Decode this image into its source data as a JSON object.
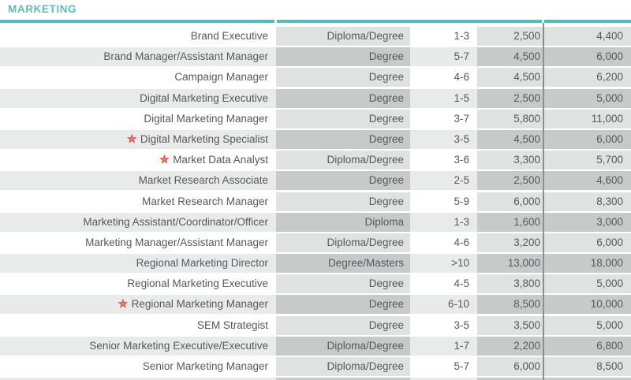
{
  "section": {
    "title": "MARKETING"
  },
  "icons": {
    "star": "★"
  },
  "colors": {
    "accent_teal": "#54bcb7",
    "title_teal": "#5cbfbb",
    "star_red": "#d5493c",
    "star_fill": "#ef8070",
    "row_stripe": "#e9eaea",
    "overlay_light": "#e0e1e1",
    "overlay_dark": "#c8caca",
    "divider_gray": "#8c8e90",
    "text_gray": "#57585b"
  },
  "table": {
    "rows": [
      {
        "starred": false,
        "job_title": "Brand Executive",
        "qualification": "Diploma/Degree",
        "experience": "1-3",
        "salary_min": "2,500",
        "salary_max": "4,400"
      },
      {
        "starred": false,
        "job_title": "Brand Manager/Assistant Manager",
        "qualification": "Degree",
        "experience": "5-7",
        "salary_min": "4,500",
        "salary_max": "6,000"
      },
      {
        "starred": false,
        "job_title": "Campaign Manager",
        "qualification": "Degree",
        "experience": "4-6",
        "salary_min": "4,500",
        "salary_max": "6,200"
      },
      {
        "starred": false,
        "job_title": "Digital Marketing Executive",
        "qualification": "Degree",
        "experience": "1-5",
        "salary_min": "2,500",
        "salary_max": "5,000"
      },
      {
        "starred": false,
        "job_title": "Digital Marketing Manager",
        "qualification": "Degree",
        "experience": "3-7",
        "salary_min": "5,800",
        "salary_max": "11,000"
      },
      {
        "starred": true,
        "job_title": "Digital Marketing Specialist",
        "qualification": "Degree",
        "experience": "3-5",
        "salary_min": "4,500",
        "salary_max": "6,000"
      },
      {
        "starred": true,
        "job_title": "Market Data Analyst",
        "qualification": "Diploma/Degree",
        "experience": "3-6",
        "salary_min": "3,300",
        "salary_max": "5,700"
      },
      {
        "starred": false,
        "job_title": "Market Research Associate",
        "qualification": "Degree",
        "experience": "2-5",
        "salary_min": "2,500",
        "salary_max": "4,600"
      },
      {
        "starred": false,
        "job_title": "Market Research Manager",
        "qualification": "Degree",
        "experience": "5-9",
        "salary_min": "6,000",
        "salary_max": "8,300"
      },
      {
        "starred": false,
        "job_title": "Marketing Assistant/Coordinator/Officer",
        "qualification": "Diploma",
        "experience": "1-3",
        "salary_min": "1,600",
        "salary_max": "3,000"
      },
      {
        "starred": false,
        "job_title": "Marketing Manager/Assistant Manager",
        "qualification": "Diploma/Degree",
        "experience": "4-6",
        "salary_min": "3,200",
        "salary_max": "6,000"
      },
      {
        "starred": false,
        "job_title": "Regional Marketing Director",
        "qualification": "Degree/Masters",
        "experience": ">10",
        "salary_min": "13,000",
        "salary_max": "18,000"
      },
      {
        "starred": false,
        "job_title": "Regional Marketing Executive",
        "qualification": "Degree",
        "experience": "4-5",
        "salary_min": "3,800",
        "salary_max": "5,000"
      },
      {
        "starred": true,
        "job_title": "Regional Marketing Manager",
        "qualification": "Degree",
        "experience": "6-10",
        "salary_min": "8,500",
        "salary_max": "10,000"
      },
      {
        "starred": false,
        "job_title": "SEM Strategist",
        "qualification": "Degree",
        "experience": "3-5",
        "salary_min": "3,500",
        "salary_max": "5,000"
      },
      {
        "starred": false,
        "job_title": "Senior Marketing Executive/Executive",
        "qualification": "Diploma/Degree",
        "experience": "1-7",
        "salary_min": "2,200",
        "salary_max": "6,800"
      },
      {
        "starred": false,
        "job_title": "Senior Marketing Manager",
        "qualification": "Diploma/Degree",
        "experience": "5-7",
        "salary_min": "6,000",
        "salary_max": "8,500"
      }
    ]
  }
}
